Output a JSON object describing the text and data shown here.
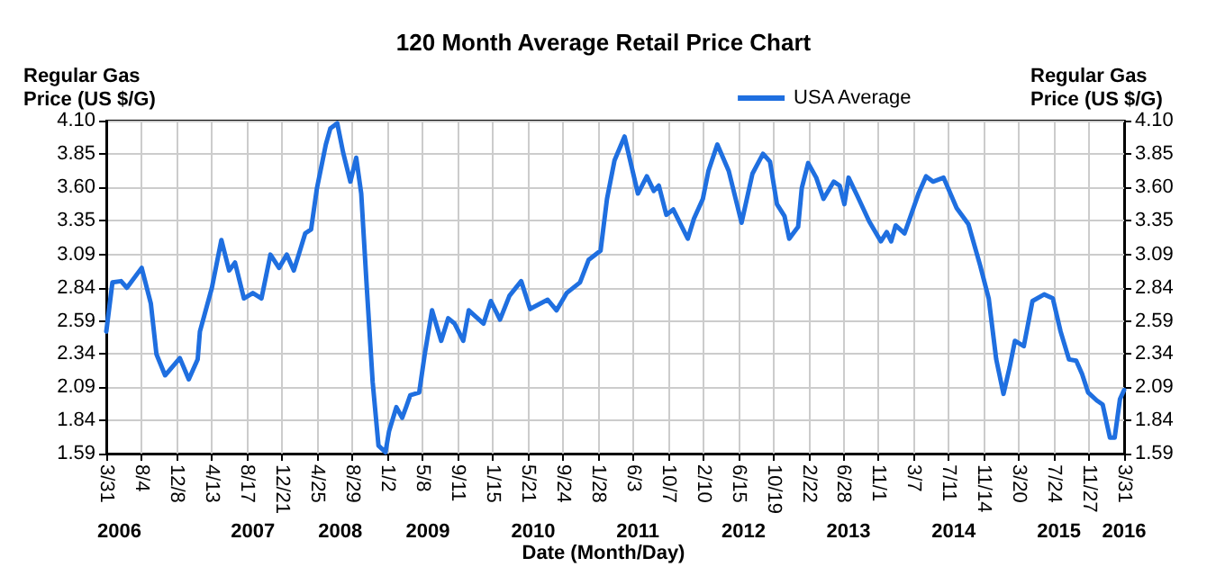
{
  "chart_data": {
    "type": "line",
    "title": "120 Month Average Retail Price Chart",
    "xlabel": "Date (Month/Day)",
    "ylabel": "Regular Gas Price (US $/G)",
    "y2label": "Regular Gas Price (US $/G)",
    "x": [
      "2006-03-31",
      "2006-04-22",
      "2006-05-23",
      "2006-06-13",
      "2006-08-05",
      "2006-09-07",
      "2006-09-27",
      "2006-10-28",
      "2006-12-20",
      "2007-01-21",
      "2007-02-22",
      "2007-03-02",
      "2007-04-14",
      "2007-05-18",
      "2007-06-15",
      "2007-07-06",
      "2007-08-07",
      "2007-09-08",
      "2007-10-09",
      "2007-11-10",
      "2007-12-11",
      "2008-01-08",
      "2008-02-02",
      "2008-02-24",
      "2008-03-14",
      "2008-04-04",
      "2008-04-25",
      "2008-05-27",
      "2008-06-12",
      "2008-07-07",
      "2008-07-28",
      "2008-08-23",
      "2008-09-13",
      "2008-10-01",
      "2008-10-21",
      "2008-11-11",
      "2008-12-02",
      "2008-12-27",
      "2009-01-09",
      "2009-02-04",
      "2009-02-25",
      "2009-03-11",
      "2009-03-26",
      "2009-04-27",
      "2009-05-17",
      "2009-06-12",
      "2009-07-15",
      "2009-08-09",
      "2009-09-01",
      "2009-10-02",
      "2009-10-22",
      "2009-12-14",
      "2010-01-09",
      "2010-02-11",
      "2010-03-17",
      "2010-04-28",
      "2010-05-30",
      "2010-08-01",
      "2010-09-02",
      "2010-10-08",
      "2010-11-25",
      "2010-12-26",
      "2011-02-07",
      "2011-03-02",
      "2011-03-29",
      "2011-05-04",
      "2011-06-21",
      "2011-07-23",
      "2011-08-17",
      "2011-09-04",
      "2011-10-01",
      "2011-10-26",
      "2011-12-17",
      "2012-01-08",
      "2012-02-09",
      "2012-02-29",
      "2012-04-01",
      "2012-05-12",
      "2012-06-27",
      "2012-08-05",
      "2012-09-12",
      "2012-10-07",
      "2012-11-01",
      "2012-11-28",
      "2012-12-15",
      "2013-01-16",
      "2013-01-29",
      "2013-02-21",
      "2013-03-22",
      "2013-04-17",
      "2013-05-24",
      "2013-06-14",
      "2013-07-01",
      "2013-07-16",
      "2013-08-17",
      "2013-09-28",
      "2013-11-09",
      "2013-11-30",
      "2013-12-16",
      "2014-01-01",
      "2014-02-02",
      "2014-03-24",
      "2014-04-20",
      "2014-05-15",
      "2014-06-22",
      "2014-08-08",
      "2014-09-19",
      "2014-10-31",
      "2014-12-01",
      "2014-12-28",
      "2015-01-23",
      "2015-02-14",
      "2015-03-05",
      "2015-04-06",
      "2015-05-07",
      "2015-06-18",
      "2015-07-19",
      "2015-08-16",
      "2015-09-15",
      "2015-10-11",
      "2015-11-01",
      "2015-11-23",
      "2015-12-24",
      "2016-01-14",
      "2016-02-09",
      "2016-02-26",
      "2016-03-16",
      "2016-03-31"
    ],
    "series": [
      {
        "name": "USA Average",
        "color": "#1f6fe0",
        "values": [
          2.51,
          2.88,
          2.89,
          2.84,
          2.99,
          2.72,
          2.34,
          2.18,
          2.31,
          2.15,
          2.3,
          2.51,
          2.84,
          3.2,
          2.97,
          3.03,
          2.76,
          2.8,
          2.76,
          3.09,
          2.99,
          3.09,
          2.97,
          3.12,
          3.25,
          3.28,
          3.59,
          3.92,
          4.04,
          4.08,
          3.86,
          3.64,
          3.82,
          3.55,
          2.84,
          2.13,
          1.65,
          1.6,
          1.76,
          1.94,
          1.86,
          1.94,
          2.03,
          2.05,
          2.34,
          2.67,
          2.44,
          2.61,
          2.57,
          2.44,
          2.67,
          2.57,
          2.74,
          2.6,
          2.78,
          2.89,
          2.68,
          2.75,
          2.67,
          2.8,
          2.88,
          3.05,
          3.12,
          3.51,
          3.8,
          3.98,
          3.55,
          3.68,
          3.57,
          3.61,
          3.39,
          3.43,
          3.21,
          3.36,
          3.51,
          3.72,
          3.92,
          3.72,
          3.33,
          3.7,
          3.85,
          3.79,
          3.47,
          3.38,
          3.21,
          3.3,
          3.59,
          3.78,
          3.67,
          3.51,
          3.64,
          3.61,
          3.47,
          3.67,
          3.53,
          3.34,
          3.19,
          3.26,
          3.19,
          3.31,
          3.25,
          3.55,
          3.68,
          3.64,
          3.67,
          3.44,
          3.32,
          3.01,
          2.76,
          2.3,
          2.04,
          2.24,
          2.44,
          2.4,
          2.74,
          2.79,
          2.76,
          2.51,
          2.3,
          2.29,
          2.19,
          2.05,
          1.99,
          1.96,
          1.71,
          1.71,
          2.0,
          2.07
        ]
      }
    ],
    "xlim": [
      "2006-03-31",
      "2016-03-31"
    ],
    "xticks": [
      {
        "value": "2006-03-31",
        "label": "3/31"
      },
      {
        "value": "2006-08-04",
        "label": "8/4"
      },
      {
        "value": "2006-12-08",
        "label": "12/8"
      },
      {
        "value": "2007-04-13",
        "label": "4/13"
      },
      {
        "value": "2007-08-17",
        "label": "8/17"
      },
      {
        "value": "2007-12-21",
        "label": "12/21"
      },
      {
        "value": "2008-04-25",
        "label": "4/25"
      },
      {
        "value": "2008-08-29",
        "label": "8/29"
      },
      {
        "value": "2009-01-02",
        "label": "1/2"
      },
      {
        "value": "2009-05-08",
        "label": "5/8"
      },
      {
        "value": "2009-09-11",
        "label": "9/11"
      },
      {
        "value": "2010-01-15",
        "label": "1/15"
      },
      {
        "value": "2010-05-21",
        "label": "5/21"
      },
      {
        "value": "2010-09-24",
        "label": "9/24"
      },
      {
        "value": "2011-01-28",
        "label": "1/28"
      },
      {
        "value": "2011-06-03",
        "label": "6/3"
      },
      {
        "value": "2011-10-07",
        "label": "10/7"
      },
      {
        "value": "2012-02-10",
        "label": "2/10"
      },
      {
        "value": "2012-06-15",
        "label": "6/15"
      },
      {
        "value": "2012-10-19",
        "label": "10/19"
      },
      {
        "value": "2013-02-22",
        "label": "2/22"
      },
      {
        "value": "2013-06-28",
        "label": "6/28"
      },
      {
        "value": "2013-11-01",
        "label": "11/1"
      },
      {
        "value": "2014-03-07",
        "label": "3/7"
      },
      {
        "value": "2014-07-11",
        "label": "7/11"
      },
      {
        "value": "2014-11-14",
        "label": "11/14"
      },
      {
        "value": "2015-03-20",
        "label": "3/20"
      },
      {
        "value": "2015-07-24",
        "label": "7/24"
      },
      {
        "value": "2015-11-27",
        "label": "11/27"
      },
      {
        "value": "2016-03-31",
        "label": "3/31"
      }
    ],
    "x2lim": [
      "2006-03-31",
      "2016-03-31"
    ],
    "x2ticks": [
      {
        "value": "2006-05-17",
        "label": "2006"
      },
      {
        "value": "2007-09-08",
        "label": "2007"
      },
      {
        "value": "2008-07-18",
        "label": "2008"
      },
      {
        "value": "2009-05-28",
        "label": "2009"
      },
      {
        "value": "2010-06-10",
        "label": "2010"
      },
      {
        "value": "2011-06-21",
        "label": "2011"
      },
      {
        "value": "2012-07-04",
        "label": "2012"
      },
      {
        "value": "2013-07-16",
        "label": "2013"
      },
      {
        "value": "2014-07-28",
        "label": "2014"
      },
      {
        "value": "2015-08-10",
        "label": "2015"
      },
      {
        "value": "2016-03-31",
        "label": "2016"
      }
    ],
    "ylim": [
      1.59,
      4.1
    ],
    "yticks": [
      1.59,
      1.84,
      2.09,
      2.34,
      2.59,
      2.84,
      3.09,
      3.35,
      {
        "value": 3.6,
        "label": "3.60"
      },
      3.85,
      {
        "value": 4.1,
        "label": "4.10"
      }
    ],
    "y2lim": [
      1.59,
      4.1
    ],
    "y2ticks": [
      1.59,
      1.84,
      2.09,
      2.34,
      2.59,
      2.84,
      3.09,
      3.35,
      {
        "value": 3.6,
        "label": "3.60"
      },
      3.85,
      {
        "value": 4.1,
        "label": "4.10"
      }
    ],
    "grid": true,
    "legend": "top right",
    "marker": "none",
    "line_style": "solid"
  }
}
